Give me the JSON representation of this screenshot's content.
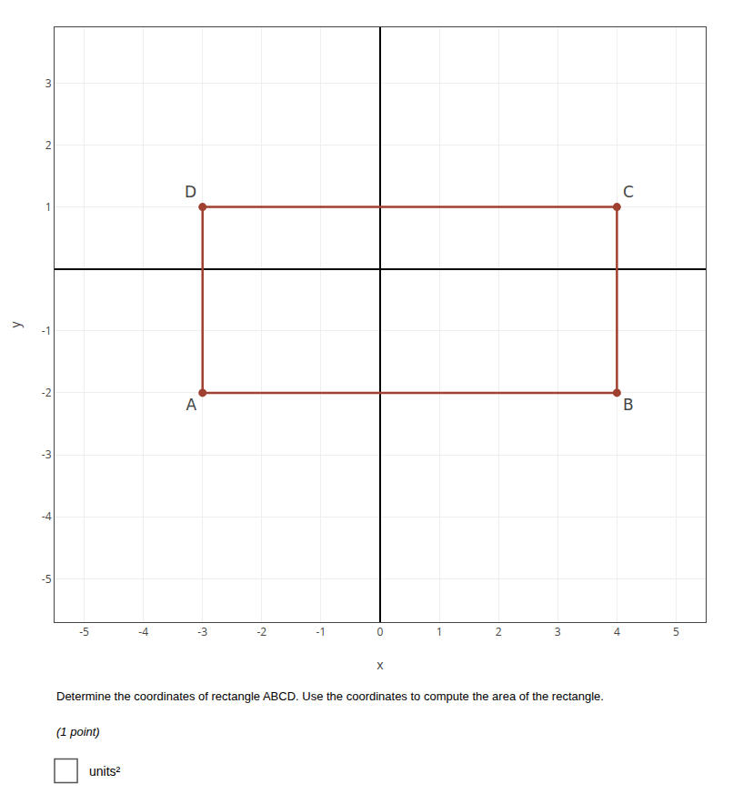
{
  "chart_data": {
    "type": "polygon",
    "x": [
      -3,
      4,
      4,
      -3
    ],
    "values": [
      -2,
      -2,
      1,
      1
    ],
    "labels": [
      "A",
      "B",
      "C",
      "D"
    ],
    "color": "#a04030",
    "marker": "circle",
    "x_label": "x",
    "y_label": "y",
    "xlim": [
      -5.5,
      5.5
    ],
    "ylim": [
      -5.7,
      3.9
    ],
    "xticks": [
      -5,
      -4,
      -3,
      -2,
      -1,
      0,
      1,
      2,
      3,
      4,
      5
    ],
    "yticks": [
      -5,
      -4,
      -3,
      -2,
      -1,
      1,
      2,
      3
    ],
    "grid": true,
    "annotations": [
      "Determine the coordinates of rectangle ABCD. Use the coordinates to compute the area of the rectangle.",
      "(1 point)",
      "units²"
    ]
  }
}
